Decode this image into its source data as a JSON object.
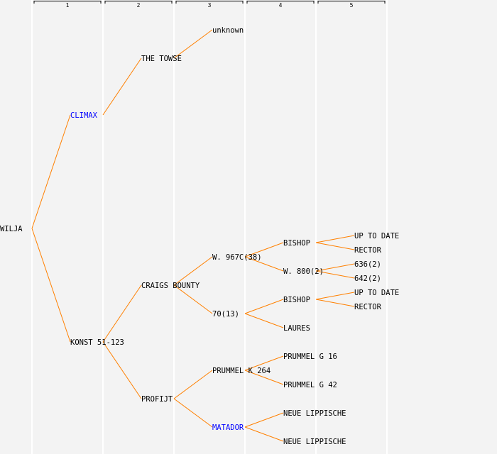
{
  "columns": [
    "1",
    "2",
    "3",
    "4",
    "5"
  ],
  "colors": {
    "line": "#ff8000",
    "text": "#000000",
    "highlight": "#0000ff",
    "separator": "#ffffff",
    "background": "#f3f3f3"
  },
  "tree": {
    "name": "WILJA",
    "children": [
      {
        "name": "CLIMAX",
        "highlight": true,
        "children": [
          {
            "name": "THE TOWSE",
            "children": [
              {
                "name": "unknown"
              },
              null
            ]
          },
          null
        ]
      },
      {
        "name": "KONST 51-123",
        "children": [
          {
            "name": "CRAIGS BOUNTY",
            "children": [
              {
                "name": "W. 967C(38)",
                "children": [
                  {
                    "name": "BISHOP",
                    "children": [
                      {
                        "name": "UP TO DATE"
                      },
                      {
                        "name": "RECTOR"
                      }
                    ]
                  },
                  {
                    "name": "W. 800(2)",
                    "children": [
                      {
                        "name": "636(2)"
                      },
                      {
                        "name": "642(2)"
                      }
                    ]
                  }
                ]
              },
              {
                "name": "70(13)",
                "children": [
                  {
                    "name": "BISHOP",
                    "children": [
                      {
                        "name": "UP TO DATE"
                      },
                      {
                        "name": "RECTOR"
                      }
                    ]
                  },
                  {
                    "name": "LAURES"
                  }
                ]
              }
            ]
          },
          {
            "name": "PROFIJT",
            "children": [
              {
                "name": "PRUMMEL K 264",
                "children": [
                  {
                    "name": "PRUMMEL G 16"
                  },
                  {
                    "name": "PRUMMEL G 42"
                  }
                ]
              },
              {
                "name": "MATADOR",
                "highlight": true,
                "children": [
                  {
                    "name": "NEUE LIPPISCHE"
                  },
                  {
                    "name": "NEUE LIPPISCHE"
                  }
                ]
              }
            ]
          }
        ]
      }
    ]
  }
}
